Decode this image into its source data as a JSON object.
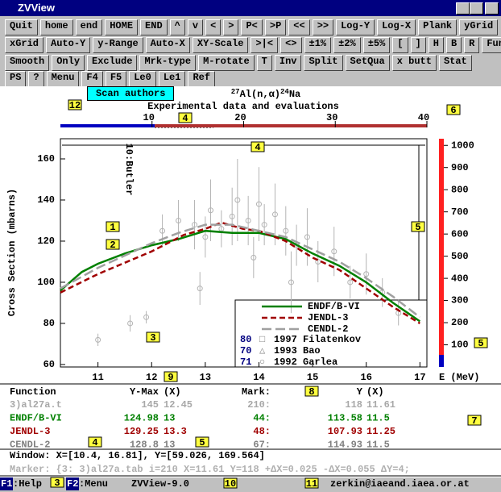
{
  "window": {
    "title": "ZVView"
  },
  "toolbar": {
    "rows": [
      [
        "Quit",
        "home",
        "end",
        "HOME",
        "END",
        "^",
        "v",
        "<",
        ">",
        "P<",
        ">P",
        "<<",
        ">>",
        "Log-Y",
        "Log-X",
        "Plank",
        "yGrid"
      ],
      [
        "xGrid",
        "Auto-Y",
        "y-Range",
        "Auto-X",
        "XY-Scale",
        ">|<",
        "<>",
        "±1%",
        "±2%",
        "±5%",
        "[",
        "]",
        "H",
        "B",
        "R",
        "Fun"
      ],
      [
        "Smooth",
        "Only",
        "Exclude",
        "Mrk-type",
        "M-rotate",
        "T",
        "Inv",
        "Split",
        "SetQua",
        "x butt",
        "Stat"
      ],
      [
        "PS",
        "?",
        "Menu",
        "F4",
        "F5",
        "Le0",
        "Le1",
        "Ref"
      ]
    ]
  },
  "tooltip": "Scan authors",
  "plot": {
    "title": {
      "mass1": "27",
      "reaction": "Al(n,α)",
      "mass2": "24",
      "product": "Na"
    },
    "subtitle": "Experimental data and evaluations",
    "energy_scale": {
      "lim": [
        0,
        40
      ],
      "ticks": [
        10,
        20,
        30,
        40
      ]
    },
    "ylabel": "Cross Section (mbarns)",
    "xlim": [
      10.3,
      17.13
    ],
    "ylim": [
      58.8,
      169.8
    ],
    "xticks": [
      11,
      12,
      13,
      14,
      15,
      16,
      17
    ],
    "yticks": [
      60,
      80,
      100,
      120,
      140,
      160
    ],
    "annotation": "10:Butler",
    "experiment": {
      "name": "3)al27a.t",
      "color": "#b4b4b4",
      "x": [
        11.0,
        11.6,
        11.9,
        12.2,
        12.5,
        12.8,
        13.0,
        13.1,
        13.3,
        13.5,
        13.6,
        13.8,
        14.0,
        14.1,
        14.3,
        14.5,
        14.7,
        14.9,
        15.1,
        15.4,
        15.7,
        16.0,
        16.3,
        16.6,
        12.9,
        13.9,
        14.6
      ],
      "y": [
        72,
        80,
        83,
        125,
        130,
        128,
        122,
        135,
        126,
        132,
        140,
        130,
        138,
        128,
        133,
        125,
        118,
        122,
        110,
        115,
        100,
        104,
        95,
        85,
        97,
        112,
        100
      ],
      "err": [
        3,
        4,
        3,
        8,
        10,
        12,
        10,
        15,
        9,
        14,
        20,
        12,
        18,
        10,
        15,
        12,
        10,
        14,
        10,
        12,
        8,
        10,
        7,
        6,
        8,
        10,
        15
      ]
    },
    "series": [
      {
        "name": "ENDF/B-VI",
        "color": "#008000",
        "dash": "none",
        "x": [
          10.3,
          10.7,
          11,
          11.5,
          12,
          12.5,
          13,
          13.5,
          14,
          14.5,
          15,
          15.5,
          16,
          16.5,
          17
        ],
        "y": [
          96,
          105,
          109,
          114,
          118,
          121,
          125,
          124,
          124,
          121,
          114,
          108,
          100,
          90,
          81
        ]
      },
      {
        "name": "JENDL-3",
        "color": "#a00000",
        "dash": "7 4",
        "x": [
          10.3,
          11,
          12,
          12.6,
          13,
          13.3,
          13.7,
          14,
          14.5,
          15,
          15.5,
          16,
          16.5,
          17
        ],
        "y": [
          95,
          104,
          115,
          123,
          126,
          129,
          126,
          125,
          120,
          112,
          106,
          97,
          88,
          80
        ]
      },
      {
        "name": "CENDL-2",
        "color": "#a0a0a0",
        "dash": "12 5",
        "x": [
          10.3,
          11,
          12,
          12.5,
          13,
          13.5,
          14,
          14.5,
          15,
          15.5,
          16,
          16.5,
          17
        ],
        "y": [
          97,
          107,
          119,
          124,
          128,
          128,
          125,
          122,
          116,
          110,
          102,
          93,
          83
        ]
      }
    ],
    "legend_refs": [
      {
        "num": "80",
        "symbol": "□",
        "label": "1997 Filatenkov"
      },
      {
        "num": "70",
        "symbol": "△",
        "label": "1993 Bao"
      },
      {
        "num": "71",
        "symbol": "○",
        "label": "1992 Garlea"
      }
    ],
    "colorbar": {
      "lim": [
        0,
        1030
      ],
      "ticks": [
        100,
        200,
        300,
        400,
        500,
        600,
        700,
        800,
        900,
        1000
      ],
      "label": "E (MeV)"
    }
  },
  "callouts": [
    "12",
    "4",
    "6",
    "4",
    "1",
    "2",
    "3",
    "5",
    "5",
    "9",
    "8",
    "7",
    "4",
    "5",
    "10",
    "11",
    "3"
  ],
  "table": {
    "headers": [
      "Function",
      "Y-Max",
      "(X)",
      "Mark:",
      "Y",
      "(X)"
    ],
    "rows": [
      {
        "color": "#a8a8a8",
        "cells": [
          "3)al27a.t",
          "145",
          "12.45",
          "210:",
          "118",
          "11.61"
        ]
      },
      {
        "color": "#008000",
        "cells": [
          "ENDF/B-VI",
          "124.98",
          "13",
          "44:",
          "113.58",
          "11.5"
        ]
      },
      {
        "color": "#a00000",
        "cells": [
          "JENDL-3",
          "129.25",
          "13.3",
          "48:",
          "107.93",
          "11.25"
        ]
      },
      {
        "color": "#808080",
        "cells": [
          "CENDL-2",
          "128.8",
          "13",
          "67:",
          "114.93",
          "11.5"
        ]
      }
    ],
    "window": "Window: X=[10.4, 16.81], Y=[59.026, 169.564]",
    "marker": "Marker: {3: 3)al27a.tab i=210 X=11.61 Y=118 +ΔX=0.025 -ΔX=0.055 ΔY=4;"
  },
  "status": {
    "f1": "F1",
    "help": ":Help",
    "f2": "F2",
    "menu": ":Menu",
    "version": "ZVView-9.0",
    "email": "zerkin@iaeand.iaea.or.at"
  }
}
